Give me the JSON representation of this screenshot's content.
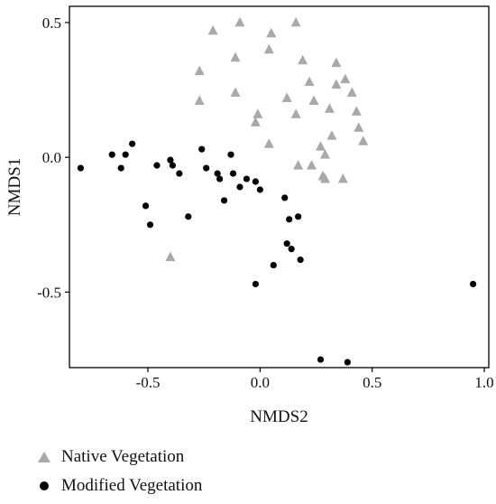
{
  "chart_data": {
    "type": "scatter",
    "title": "",
    "xlabel": "NMDS2",
    "ylabel": "NMDS1",
    "xlim": [
      -0.85,
      1.02
    ],
    "ylim": [
      -0.78,
      0.56
    ],
    "xticks": [
      -0.5,
      0.0,
      0.5,
      1.0
    ],
    "xtick_labels": [
      "-0.5",
      "0.0",
      "0.5",
      "1.0"
    ],
    "yticks": [
      -0.5,
      0.0,
      0.5
    ],
    "ytick_labels": [
      "-0.5",
      "0.0",
      "0.5"
    ],
    "grid": false,
    "legend_position": "bottom-left, below plot",
    "series": [
      {
        "name": "Native Vegetation",
        "marker": "triangle",
        "color": "#a9a9a9",
        "points": [
          [
            -0.21,
            0.47
          ],
          [
            -0.09,
            0.5
          ],
          [
            0.05,
            0.46
          ],
          [
            0.16,
            0.5
          ],
          [
            0.04,
            0.4
          ],
          [
            -0.11,
            0.37
          ],
          [
            0.19,
            0.36
          ],
          [
            -0.27,
            0.32
          ],
          [
            0.34,
            0.35
          ],
          [
            0.38,
            0.29
          ],
          [
            0.22,
            0.28
          ],
          [
            0.34,
            0.27
          ],
          [
            0.41,
            0.24
          ],
          [
            -0.11,
            0.24
          ],
          [
            0.12,
            0.22
          ],
          [
            -0.27,
            0.21
          ],
          [
            0.24,
            0.21
          ],
          [
            0.43,
            0.17
          ],
          [
            0.31,
            0.18
          ],
          [
            0.16,
            0.16
          ],
          [
            -0.01,
            0.16
          ],
          [
            -0.02,
            0.13
          ],
          [
            0.44,
            0.11
          ],
          [
            0.46,
            0.06
          ],
          [
            0.32,
            0.08
          ],
          [
            0.04,
            0.05
          ],
          [
            0.27,
            0.04
          ],
          [
            0.29,
            0.01
          ],
          [
            0.17,
            -0.03
          ],
          [
            0.23,
            -0.03
          ],
          [
            0.28,
            -0.07
          ],
          [
            0.29,
            -0.08
          ],
          [
            0.37,
            -0.08
          ],
          [
            -0.4,
            -0.37
          ]
        ]
      },
      {
        "name": "Modified Vegetation",
        "marker": "circle",
        "color": "#000000",
        "points": [
          [
            -0.8,
            -0.04
          ],
          [
            -0.66,
            0.01
          ],
          [
            -0.6,
            0.01
          ],
          [
            -0.57,
            0.05
          ],
          [
            -0.62,
            -0.04
          ],
          [
            -0.46,
            -0.03
          ],
          [
            -0.4,
            -0.01
          ],
          [
            -0.39,
            -0.03
          ],
          [
            -0.36,
            -0.06
          ],
          [
            -0.26,
            0.03
          ],
          [
            -0.24,
            -0.04
          ],
          [
            -0.19,
            -0.06
          ],
          [
            -0.13,
            0.01
          ],
          [
            -0.18,
            -0.08
          ],
          [
            -0.12,
            -0.06
          ],
          [
            -0.06,
            -0.08
          ],
          [
            -0.02,
            -0.09
          ],
          [
            0.0,
            -0.12
          ],
          [
            -0.09,
            -0.11
          ],
          [
            -0.16,
            -0.16
          ],
          [
            -0.32,
            -0.22
          ],
          [
            -0.51,
            -0.18
          ],
          [
            -0.49,
            -0.25
          ],
          [
            0.11,
            -0.15
          ],
          [
            0.13,
            -0.23
          ],
          [
            0.17,
            -0.22
          ],
          [
            0.12,
            -0.32
          ],
          [
            0.14,
            -0.34
          ],
          [
            0.18,
            -0.38
          ],
          [
            0.06,
            -0.4
          ],
          [
            -0.02,
            -0.47
          ],
          [
            0.95,
            -0.47
          ],
          [
            0.27,
            -0.75
          ],
          [
            0.39,
            -0.76
          ]
        ]
      }
    ]
  },
  "legend": {
    "items": [
      {
        "label": "Native Vegetation",
        "marker": "triangle",
        "color": "#a9a9a9"
      },
      {
        "label": "Modified Vegetation",
        "marker": "circle",
        "color": "#000000"
      }
    ]
  }
}
